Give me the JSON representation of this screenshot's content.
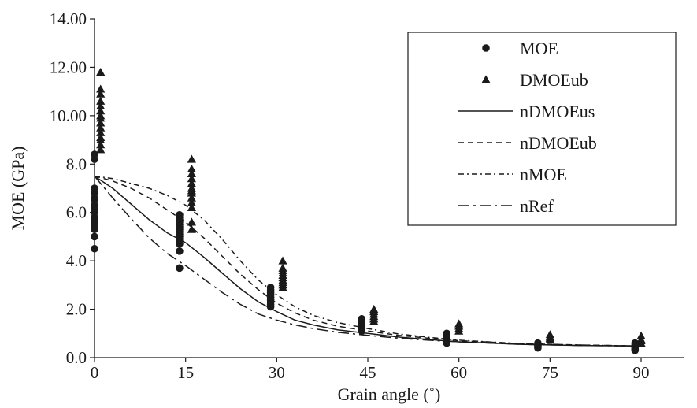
{
  "chart_data": {
    "type": "scatter",
    "xlabel": "Grain angle (˚)",
    "ylabel": "MOE (GPa)",
    "xlim": [
      0,
      97
    ],
    "ylim": [
      0,
      14
    ],
    "x_ticks": [
      0,
      15,
      30,
      45,
      60,
      75,
      90
    ],
    "x_tick_labels": [
      "0",
      "15",
      "30",
      "45",
      "60",
      "75",
      "90"
    ],
    "y_ticks": [
      0,
      2,
      4,
      6,
      8,
      10,
      12,
      14
    ],
    "y_tick_labels": [
      "0.0",
      "2.0",
      "4.0",
      "6.0",
      "8.0",
      "10.00",
      "12.00",
      "14.00"
    ],
    "grid": false,
    "legend_position": "top-right",
    "series": [
      {
        "name": "MOE",
        "kind": "points",
        "marker": "circle",
        "x": [
          0,
          0,
          0,
          0,
          0,
          0,
          0,
          0,
          0,
          0,
          0,
          0,
          0,
          0,
          0,
          0,
          0,
          0,
          14,
          14,
          14,
          14,
          14,
          14,
          14,
          14,
          14,
          14,
          14,
          14,
          14,
          14,
          14,
          29,
          29,
          29,
          29,
          29,
          29,
          29,
          29,
          29,
          44,
          44,
          44,
          44,
          44,
          44,
          58,
          58,
          58,
          58,
          58,
          73,
          73,
          73,
          73,
          89,
          89,
          89,
          89,
          89,
          89
        ],
        "y": [
          8.4,
          8.2,
          7.0,
          6.8,
          6.6,
          6.5,
          6.3,
          6.2,
          6.1,
          6.0,
          5.8,
          5.7,
          5.6,
          5.5,
          5.4,
          5.3,
          5.0,
          4.5,
          5.9,
          5.8,
          5.7,
          5.6,
          5.5,
          5.4,
          5.3,
          5.2,
          5.1,
          5.0,
          4.9,
          4.8,
          4.7,
          4.4,
          3.7,
          2.9,
          2.8,
          2.7,
          2.6,
          2.5,
          2.4,
          2.3,
          2.2,
          2.1,
          1.6,
          1.5,
          1.4,
          1.3,
          1.2,
          1.1,
          1.0,
          0.9,
          0.8,
          0.7,
          0.6,
          0.6,
          0.5,
          0.45,
          0.4,
          0.6,
          0.5,
          0.45,
          0.4,
          0.35,
          0.3
        ]
      },
      {
        "name": "DMOEub",
        "kind": "points",
        "marker": "triangle",
        "x": [
          1,
          1,
          1,
          1,
          1,
          1,
          1,
          1,
          1,
          1,
          1,
          1,
          1,
          1,
          1,
          16,
          16,
          16,
          16,
          16,
          16,
          16,
          16,
          16,
          16,
          16,
          16,
          16,
          31,
          31,
          31,
          31,
          31,
          31,
          31,
          31,
          31,
          31,
          46,
          46,
          46,
          46,
          46,
          46,
          60,
          60,
          60,
          60,
          75,
          75,
          75,
          75,
          90,
          90,
          90,
          90
        ],
        "y": [
          11.8,
          11.1,
          10.9,
          10.6,
          10.4,
          10.2,
          10.0,
          9.9,
          9.7,
          9.5,
          9.3,
          9.1,
          9.0,
          8.8,
          8.6,
          8.2,
          7.8,
          7.6,
          7.4,
          7.2,
          7.0,
          6.9,
          6.8,
          6.6,
          6.4,
          6.2,
          5.6,
          5.3,
          4.0,
          3.7,
          3.6,
          3.5,
          3.4,
          3.3,
          3.2,
          3.1,
          3.0,
          2.9,
          2.0,
          1.9,
          1.8,
          1.7,
          1.6,
          1.5,
          1.4,
          1.3,
          1.2,
          1.1,
          0.95,
          0.85,
          0.8,
          0.75,
          0.9,
          0.75,
          0.7,
          0.6
        ]
      },
      {
        "name": "nDMOEus",
        "kind": "line",
        "dash": "solid",
        "x": [
          0,
          3,
          6,
          9,
          12,
          15,
          18,
          21,
          24,
          27,
          30,
          33,
          36,
          40,
          45,
          50,
          55,
          60,
          70,
          80,
          90
        ],
        "y": [
          7.5,
          7.0,
          6.35,
          5.7,
          5.15,
          4.75,
          4.15,
          3.5,
          2.85,
          2.3,
          1.9,
          1.55,
          1.35,
          1.15,
          1.0,
          0.85,
          0.75,
          0.65,
          0.55,
          0.5,
          0.48
        ]
      },
      {
        "name": "nDMOEub",
        "kind": "line",
        "dash": "dashed",
        "x": [
          0,
          3,
          6,
          9,
          12,
          15,
          18,
          21,
          24,
          27,
          30,
          33,
          36,
          40,
          45,
          50,
          55,
          60,
          70,
          80,
          90
        ],
        "y": [
          7.5,
          7.3,
          7.0,
          6.6,
          6.1,
          5.6,
          4.95,
          4.2,
          3.45,
          2.8,
          2.25,
          1.85,
          1.55,
          1.3,
          1.1,
          0.92,
          0.8,
          0.7,
          0.58,
          0.52,
          0.48
        ]
      },
      {
        "name": "nMOE",
        "kind": "line",
        "dash": "dash-dot",
        "x": [
          0,
          3,
          6,
          9,
          12,
          15,
          18,
          21,
          24,
          27,
          30,
          33,
          36,
          40,
          45,
          50,
          55,
          60,
          70,
          80,
          90
        ],
        "y": [
          7.5,
          7.4,
          7.2,
          7.0,
          6.7,
          6.3,
          5.7,
          4.9,
          4.0,
          3.2,
          2.6,
          2.1,
          1.75,
          1.45,
          1.2,
          0.98,
          0.84,
          0.72,
          0.58,
          0.52,
          0.48
        ]
      },
      {
        "name": "nRef",
        "kind": "line",
        "dash": "long-dash-dot",
        "x": [
          0,
          3,
          6,
          9,
          12,
          15,
          18,
          21,
          24,
          27,
          30,
          33,
          36,
          40,
          45,
          50,
          55,
          60,
          70,
          80,
          90
        ],
        "y": [
          7.5,
          6.6,
          5.75,
          4.95,
          4.3,
          3.8,
          3.25,
          2.7,
          2.2,
          1.8,
          1.55,
          1.35,
          1.2,
          1.05,
          0.92,
          0.8,
          0.72,
          0.65,
          0.55,
          0.5,
          0.48
        ]
      }
    ]
  }
}
